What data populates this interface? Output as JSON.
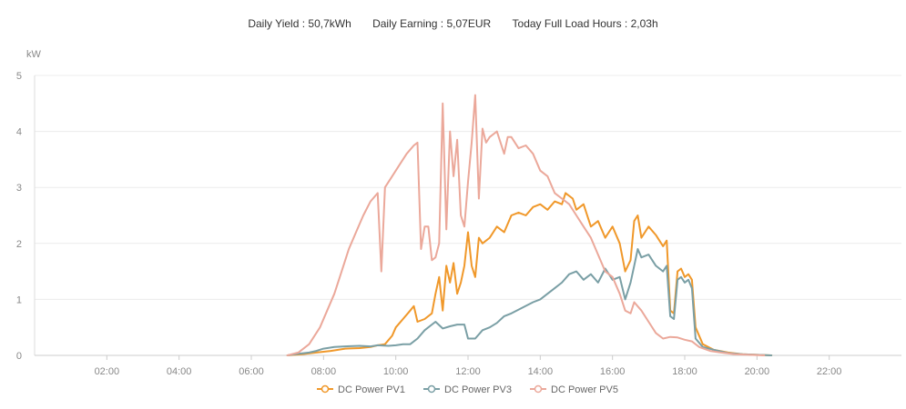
{
  "summary": {
    "daily_yield_label": "Daily Yield :",
    "daily_yield_value": "50,7kWh",
    "daily_earning_label": "Daily Earning :",
    "daily_earning_value": "5,07EUR",
    "full_load_label": "Today Full Load Hours :",
    "full_load_value": "2,03h"
  },
  "chart_data": {
    "type": "line",
    "title": "",
    "ylabel": "kW",
    "xlabel": "",
    "ylim": [
      0,
      5
    ],
    "xlim": [
      0,
      24
    ],
    "grid": true,
    "legend_position": "bottom-center",
    "y_ticks": [
      {
        "value": 0,
        "label": "0"
      },
      {
        "value": 1,
        "label": "1"
      },
      {
        "value": 2,
        "label": "2"
      },
      {
        "value": 3,
        "label": "3"
      },
      {
        "value": 4,
        "label": "4"
      },
      {
        "value": 5,
        "label": "5"
      }
    ],
    "x_ticks": [
      {
        "value": 2,
        "label": "02:00"
      },
      {
        "value": 4,
        "label": "04:00"
      },
      {
        "value": 6,
        "label": "06:00"
      },
      {
        "value": 8,
        "label": "08:00"
      },
      {
        "value": 10,
        "label": "10:00"
      },
      {
        "value": 12,
        "label": "12:00"
      },
      {
        "value": 14,
        "label": "14:00"
      },
      {
        "value": 16,
        "label": "16:00"
      },
      {
        "value": 18,
        "label": "18:00"
      },
      {
        "value": 20,
        "label": "20:00"
      },
      {
        "value": 22,
        "label": "22:00"
      }
    ],
    "series": [
      {
        "name": "DC Power PV1",
        "color": "#F0982A",
        "points": [
          [
            7.0,
            0
          ],
          [
            7.4,
            0.02
          ],
          [
            7.8,
            0.05
          ],
          [
            8.2,
            0.08
          ],
          [
            8.6,
            0.12
          ],
          [
            9.0,
            0.13
          ],
          [
            9.3,
            0.15
          ],
          [
            9.5,
            0.18
          ],
          [
            9.7,
            0.2
          ],
          [
            9.9,
            0.35
          ],
          [
            10.0,
            0.5
          ],
          [
            10.2,
            0.65
          ],
          [
            10.4,
            0.8
          ],
          [
            10.5,
            0.88
          ],
          [
            10.6,
            0.6
          ],
          [
            10.8,
            0.65
          ],
          [
            11.0,
            0.75
          ],
          [
            11.1,
            1.1
          ],
          [
            11.2,
            1.4
          ],
          [
            11.3,
            0.8
          ],
          [
            11.4,
            1.6
          ],
          [
            11.5,
            1.3
          ],
          [
            11.6,
            1.65
          ],
          [
            11.7,
            1.1
          ],
          [
            11.8,
            1.3
          ],
          [
            11.9,
            1.6
          ],
          [
            12.0,
            2.2
          ],
          [
            12.1,
            1.6
          ],
          [
            12.2,
            1.4
          ],
          [
            12.3,
            2.1
          ],
          [
            12.4,
            2.0
          ],
          [
            12.6,
            2.1
          ],
          [
            12.8,
            2.3
          ],
          [
            13.0,
            2.2
          ],
          [
            13.2,
            2.5
          ],
          [
            13.4,
            2.55
          ],
          [
            13.6,
            2.5
          ],
          [
            13.8,
            2.65
          ],
          [
            14.0,
            2.7
          ],
          [
            14.2,
            2.6
          ],
          [
            14.4,
            2.75
          ],
          [
            14.6,
            2.7
          ],
          [
            14.7,
            2.9
          ],
          [
            14.9,
            2.8
          ],
          [
            15.0,
            2.6
          ],
          [
            15.2,
            2.7
          ],
          [
            15.4,
            2.3
          ],
          [
            15.6,
            2.4
          ],
          [
            15.8,
            2.1
          ],
          [
            16.0,
            2.3
          ],
          [
            16.2,
            2.0
          ],
          [
            16.35,
            1.5
          ],
          [
            16.5,
            1.7
          ],
          [
            16.6,
            2.4
          ],
          [
            16.7,
            2.5
          ],
          [
            16.8,
            2.1
          ],
          [
            17.0,
            2.3
          ],
          [
            17.2,
            2.15
          ],
          [
            17.4,
            1.95
          ],
          [
            17.5,
            2.05
          ],
          [
            17.6,
            0.8
          ],
          [
            17.7,
            0.75
          ],
          [
            17.8,
            1.5
          ],
          [
            17.9,
            1.55
          ],
          [
            18.0,
            1.4
          ],
          [
            18.1,
            1.45
          ],
          [
            18.2,
            1.35
          ],
          [
            18.3,
            0.5
          ],
          [
            18.5,
            0.2
          ],
          [
            18.8,
            0.1
          ],
          [
            19.2,
            0.05
          ],
          [
            19.6,
            0.02
          ],
          [
            20.0,
            0.01
          ],
          [
            20.4,
            0
          ]
        ]
      },
      {
        "name": "DC Power PV3",
        "color": "#7A9FA5",
        "points": [
          [
            7.0,
            0
          ],
          [
            7.3,
            0.03
          ],
          [
            7.6,
            0.05
          ],
          [
            7.8,
            0.08
          ],
          [
            8.0,
            0.12
          ],
          [
            8.3,
            0.15
          ],
          [
            8.6,
            0.16
          ],
          [
            9.0,
            0.17
          ],
          [
            9.3,
            0.16
          ],
          [
            9.5,
            0.18
          ],
          [
            9.8,
            0.17
          ],
          [
            10.0,
            0.18
          ],
          [
            10.2,
            0.2
          ],
          [
            10.4,
            0.2
          ],
          [
            10.6,
            0.3
          ],
          [
            10.8,
            0.45
          ],
          [
            11.0,
            0.55
          ],
          [
            11.1,
            0.6
          ],
          [
            11.3,
            0.48
          ],
          [
            11.5,
            0.52
          ],
          [
            11.7,
            0.55
          ],
          [
            11.9,
            0.55
          ],
          [
            12.0,
            0.3
          ],
          [
            12.2,
            0.3
          ],
          [
            12.4,
            0.45
          ],
          [
            12.6,
            0.5
          ],
          [
            12.8,
            0.58
          ],
          [
            13.0,
            0.7
          ],
          [
            13.2,
            0.75
          ],
          [
            13.5,
            0.85
          ],
          [
            13.8,
            0.95
          ],
          [
            14.0,
            1.0
          ],
          [
            14.2,
            1.1
          ],
          [
            14.4,
            1.2
          ],
          [
            14.6,
            1.3
          ],
          [
            14.8,
            1.45
          ],
          [
            15.0,
            1.5
          ],
          [
            15.2,
            1.35
          ],
          [
            15.4,
            1.45
          ],
          [
            15.6,
            1.3
          ],
          [
            15.8,
            1.55
          ],
          [
            16.0,
            1.35
          ],
          [
            16.2,
            1.4
          ],
          [
            16.35,
            1.0
          ],
          [
            16.5,
            1.3
          ],
          [
            16.6,
            1.6
          ],
          [
            16.7,
            1.9
          ],
          [
            16.8,
            1.75
          ],
          [
            17.0,
            1.8
          ],
          [
            17.2,
            1.6
          ],
          [
            17.4,
            1.5
          ],
          [
            17.5,
            1.6
          ],
          [
            17.6,
            0.7
          ],
          [
            17.7,
            0.65
          ],
          [
            17.8,
            1.35
          ],
          [
            17.9,
            1.4
          ],
          [
            18.0,
            1.3
          ],
          [
            18.1,
            1.35
          ],
          [
            18.2,
            1.2
          ],
          [
            18.3,
            0.3
          ],
          [
            18.5,
            0.15
          ],
          [
            18.8,
            0.1
          ],
          [
            19.2,
            0.04
          ],
          [
            19.6,
            0.02
          ],
          [
            20.0,
            0.01
          ],
          [
            20.4,
            0
          ]
        ]
      },
      {
        "name": "DC Power PV5",
        "color": "#EBA89A",
        "points": [
          [
            7.0,
            0
          ],
          [
            7.3,
            0.05
          ],
          [
            7.6,
            0.2
          ],
          [
            7.9,
            0.5
          ],
          [
            8.1,
            0.8
          ],
          [
            8.3,
            1.1
          ],
          [
            8.5,
            1.5
          ],
          [
            8.7,
            1.9
          ],
          [
            8.9,
            2.2
          ],
          [
            9.1,
            2.5
          ],
          [
            9.3,
            2.75
          ],
          [
            9.5,
            2.9
          ],
          [
            9.6,
            1.5
          ],
          [
            9.7,
            3.0
          ],
          [
            9.9,
            3.2
          ],
          [
            10.1,
            3.4
          ],
          [
            10.3,
            3.6
          ],
          [
            10.5,
            3.75
          ],
          [
            10.6,
            3.8
          ],
          [
            10.7,
            1.9
          ],
          [
            10.8,
            2.3
          ],
          [
            10.9,
            2.3
          ],
          [
            11.0,
            1.7
          ],
          [
            11.1,
            1.75
          ],
          [
            11.2,
            2.0
          ],
          [
            11.3,
            4.5
          ],
          [
            11.4,
            2.25
          ],
          [
            11.5,
            4.0
          ],
          [
            11.6,
            3.2
          ],
          [
            11.7,
            3.85
          ],
          [
            11.8,
            2.5
          ],
          [
            11.9,
            2.3
          ],
          [
            12.0,
            3.1
          ],
          [
            12.1,
            3.8
          ],
          [
            12.2,
            4.65
          ],
          [
            12.3,
            2.8
          ],
          [
            12.4,
            4.05
          ],
          [
            12.5,
            3.8
          ],
          [
            12.6,
            3.9
          ],
          [
            12.8,
            4.0
          ],
          [
            13.0,
            3.6
          ],
          [
            13.1,
            3.9
          ],
          [
            13.2,
            3.9
          ],
          [
            13.4,
            3.7
          ],
          [
            13.6,
            3.75
          ],
          [
            13.8,
            3.6
          ],
          [
            14.0,
            3.3
          ],
          [
            14.2,
            3.2
          ],
          [
            14.4,
            2.9
          ],
          [
            14.6,
            2.8
          ],
          [
            14.8,
            2.7
          ],
          [
            15.0,
            2.5
          ],
          [
            15.2,
            2.3
          ],
          [
            15.4,
            2.1
          ],
          [
            15.6,
            1.8
          ],
          [
            15.8,
            1.5
          ],
          [
            16.0,
            1.4
          ],
          [
            16.2,
            1.1
          ],
          [
            16.35,
            0.8
          ],
          [
            16.5,
            0.75
          ],
          [
            16.6,
            0.95
          ],
          [
            16.8,
            0.8
          ],
          [
            17.0,
            0.6
          ],
          [
            17.2,
            0.4
          ],
          [
            17.4,
            0.3
          ],
          [
            17.6,
            0.33
          ],
          [
            17.8,
            0.32
          ],
          [
            18.0,
            0.28
          ],
          [
            18.2,
            0.25
          ],
          [
            18.4,
            0.15
          ],
          [
            18.7,
            0.08
          ],
          [
            19.0,
            0.05
          ],
          [
            19.4,
            0.02
          ],
          [
            19.8,
            0.01
          ],
          [
            20.2,
            0
          ]
        ]
      }
    ]
  }
}
